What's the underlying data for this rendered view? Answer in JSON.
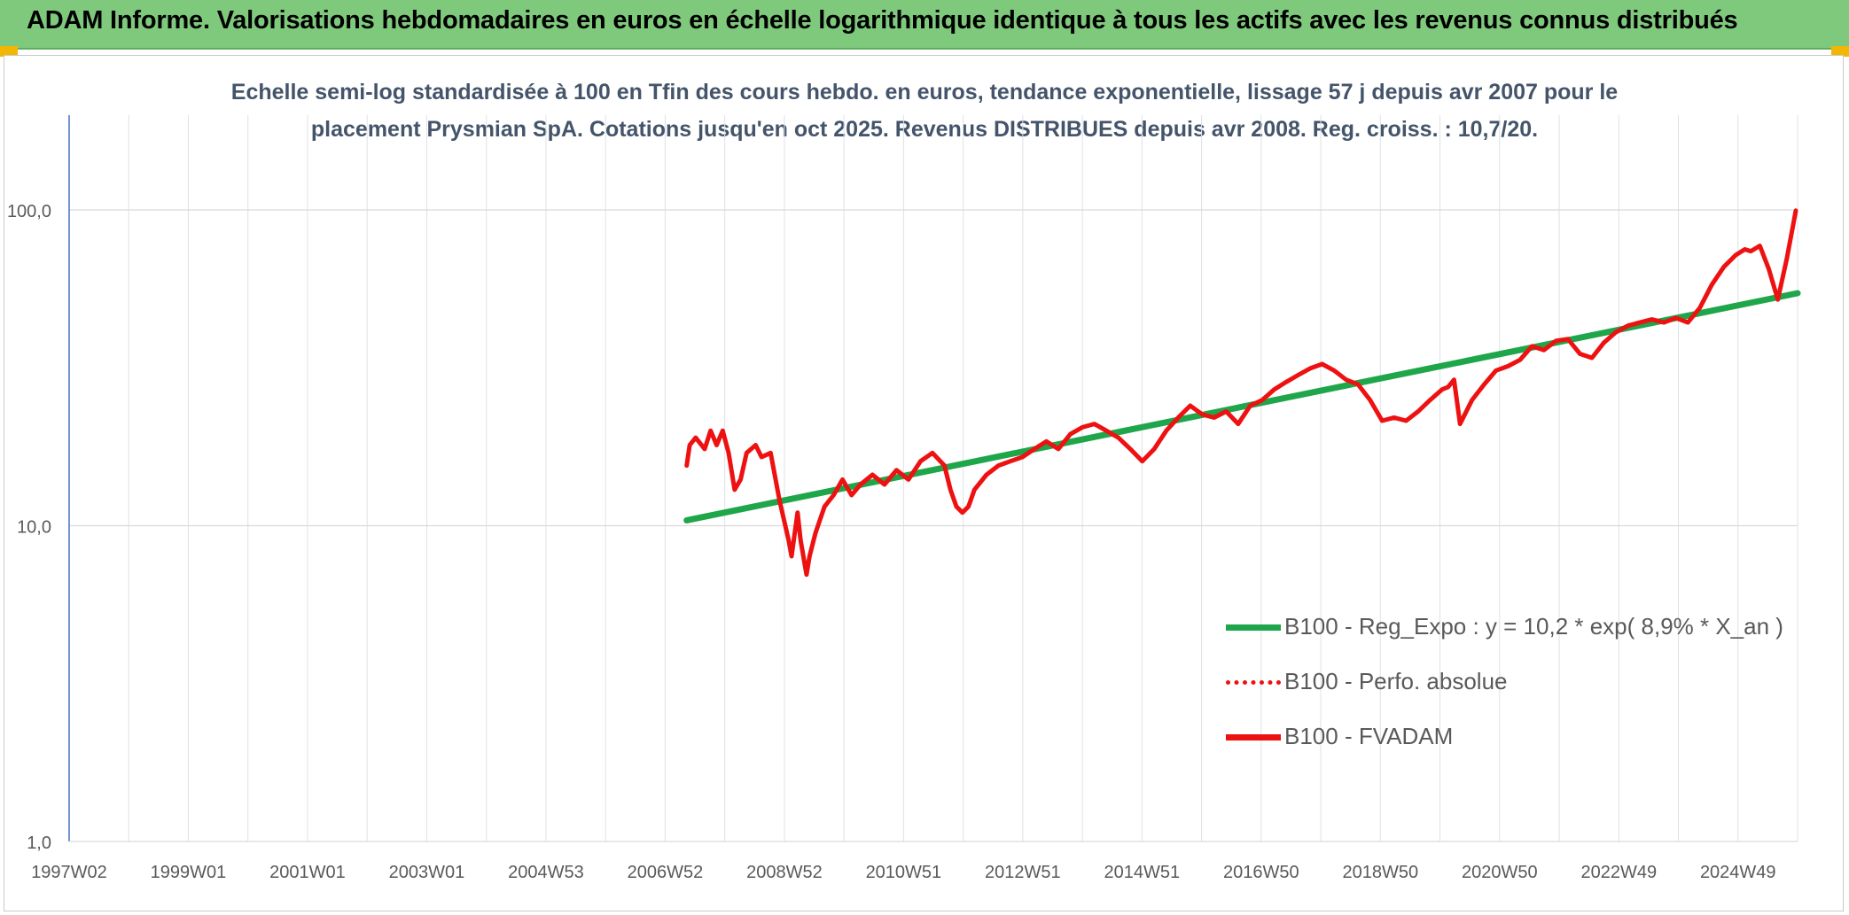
{
  "header": {
    "title": "ADAM Informe. Valorisations hebdomadaires en euros en échelle logarithmique identique à tous les actifs avec les revenus connus distribués"
  },
  "colors": {
    "header_bg": "#7fc97c",
    "accent_corner": "#f2b705",
    "regression": "#1fa64a",
    "fvadam": "#ee1111",
    "perfo": "#ee1111",
    "title_text": "#44546a"
  },
  "chart_data": {
    "type": "line",
    "title_lines": [
      "Echelle semi-log standardisée à 100 en Tfin des cours hebdo. en euros, tendance exponentielle, lissage 57 j depuis avr 2007 pour le",
      "placement Prysmian SpA. Cotations jusqu'en oct 2025. Revenus DISTRIBUES depuis avr 2008. Reg. croiss. : 10,7/20."
    ],
    "y_scale": "log",
    "ylim": [
      1,
      100
    ],
    "y_ticks": [
      "1,0",
      "10,0",
      "100,0"
    ],
    "xlim": [
      1997.0,
      2025.83
    ],
    "x_tick_labels": [
      "1997W02",
      "1999W01",
      "2001W01",
      "2003W01",
      "2004W53",
      "2006W52",
      "2008W52",
      "2010W51",
      "2012W51",
      "2014W51",
      "2016W50",
      "2018W50",
      "2020W50",
      "2022W49",
      "2024W49"
    ],
    "grid": true,
    "legend_position": "lower-right",
    "legend": [
      {
        "key": "regression",
        "label": "B100 - Reg_Expo : y = 10,2 * exp( 8,9% *  X_an )",
        "style": "solid-green"
      },
      {
        "key": "perfo",
        "label": "B100 - Perfo. absolue",
        "style": "dotted-red"
      },
      {
        "key": "fvadam",
        "label": "B100 - FVADAM",
        "style": "solid-red"
      }
    ],
    "series": [
      {
        "key": "regression",
        "x": [
          2007.3,
          2025.83
        ],
        "y": [
          10.4,
          54.5
        ]
      },
      {
        "key": "fvadam",
        "x": [
          2007.3,
          2007.35,
          2007.45,
          2007.6,
          2007.7,
          2007.8,
          2007.9,
          2008.0,
          2008.1,
          2008.2,
          2008.3,
          2008.45,
          2008.55,
          2008.7,
          2008.85,
          2009.0,
          2009.05,
          2009.15,
          2009.2,
          2009.3,
          2009.35,
          2009.45,
          2009.6,
          2009.75,
          2009.9,
          2010.05,
          2010.2,
          2010.4,
          2010.6,
          2010.8,
          2011.0,
          2011.2,
          2011.4,
          2011.6,
          2011.7,
          2011.8,
          2011.9,
          2012.0,
          2012.1,
          2012.3,
          2012.5,
          2012.7,
          2012.9,
          2013.1,
          2013.3,
          2013.5,
          2013.7,
          2013.9,
          2014.1,
          2014.3,
          2014.5,
          2014.7,
          2014.9,
          2015.1,
          2015.3,
          2015.5,
          2015.7,
          2015.9,
          2016.1,
          2016.3,
          2016.5,
          2016.7,
          2016.9,
          2017.1,
          2017.3,
          2017.5,
          2017.7,
          2017.9,
          2018.1,
          2018.3,
          2018.5,
          2018.7,
          2018.9,
          2019.1,
          2019.3,
          2019.5,
          2019.7,
          2019.9,
          2020.0,
          2020.1,
          2020.2,
          2020.4,
          2020.6,
          2020.8,
          2021.0,
          2021.2,
          2021.4,
          2021.6,
          2021.8,
          2022.0,
          2022.2,
          2022.4,
          2022.6,
          2022.8,
          2023.0,
          2023.2,
          2023.4,
          2023.6,
          2023.8,
          2024.0,
          2024.2,
          2024.4,
          2024.6,
          2024.8,
          2024.95,
          2025.05,
          2025.2,
          2025.35,
          2025.5,
          2025.65,
          2025.8
        ],
        "y": [
          15.5,
          18.0,
          19.0,
          17.5,
          20.0,
          18.0,
          20.0,
          17.0,
          13.0,
          14.0,
          17.0,
          18.0,
          16.5,
          17.0,
          12.0,
          9.0,
          8.0,
          11.0,
          9.0,
          7.0,
          8.0,
          9.5,
          11.5,
          12.5,
          14.0,
          12.5,
          13.5,
          14.5,
          13.5,
          15.0,
          14.0,
          16.0,
          17.0,
          15.5,
          13.0,
          11.5,
          11.0,
          11.5,
          13.0,
          14.5,
          15.5,
          16.0,
          16.5,
          17.5,
          18.5,
          17.5,
          19.5,
          20.5,
          21.0,
          20.0,
          19.0,
          17.5,
          16.0,
          17.5,
          20.0,
          22.0,
          24.0,
          22.5,
          22.0,
          23.0,
          21.0,
          24.0,
          25.0,
          27.0,
          28.5,
          30.0,
          31.5,
          32.5,
          31.0,
          29.0,
          28.0,
          25.0,
          21.5,
          22.0,
          21.5,
          23.0,
          25.0,
          27.0,
          27.5,
          29.0,
          21.0,
          25.0,
          28.0,
          31.0,
          32.0,
          33.5,
          37.0,
          36.0,
          38.5,
          39.0,
          35.0,
          34.0,
          38.0,
          41.0,
          43.0,
          44.0,
          45.0,
          44.0,
          45.5,
          44.0,
          49.0,
          58.0,
          66.0,
          72.0,
          75.0,
          74.0,
          77.0,
          65.0,
          52.0,
          70.0,
          99.5
        ]
      }
    ]
  }
}
